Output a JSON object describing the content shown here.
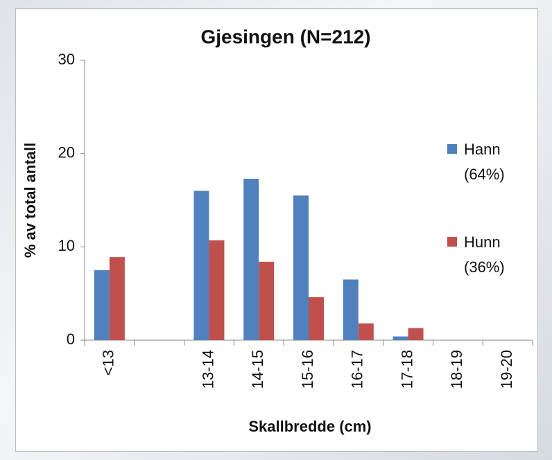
{
  "chart_data": {
    "type": "bar",
    "title": "Gjesingen (N=212)",
    "x_label": "Skallbredde (cm)",
    "y_label": "% av total antall",
    "categories": [
      "<13",
      null,
      "13-14",
      "14-15",
      "15-16",
      "16-17",
      "17-18",
      "18-19",
      "19-20"
    ],
    "series": [
      {
        "name": "Hann (64%)",
        "color": "#4f81bd",
        "values": [
          7.5,
          null,
          16,
          17.3,
          15.5,
          6.5,
          0.4,
          0,
          0
        ]
      },
      {
        "name": "Hunn (36%)",
        "color": "#c0504d",
        "values": [
          8.9,
          null,
          10.7,
          8.4,
          4.6,
          1.8,
          1.3,
          0,
          0
        ]
      }
    ],
    "ylim": [
      0,
      30
    ],
    "yticks": [
      0,
      10,
      20,
      30
    ],
    "grid": false,
    "legend": "right"
  }
}
